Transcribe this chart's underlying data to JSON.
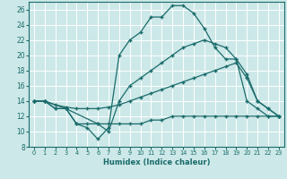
{
  "xlabel": "Humidex (Indice chaleur)",
  "xlim": [
    -0.5,
    23.5
  ],
  "ylim": [
    8,
    27
  ],
  "yticks": [
    8,
    10,
    12,
    14,
    16,
    18,
    20,
    22,
    24,
    26
  ],
  "xticks": [
    0,
    1,
    2,
    3,
    4,
    5,
    6,
    7,
    8,
    9,
    10,
    11,
    12,
    13,
    14,
    15,
    16,
    17,
    18,
    19,
    20,
    21,
    22,
    23
  ],
  "bg_color": "#cde8e8",
  "line_color": "#1a6b6b",
  "grid_color": "#ffffff",
  "lines": [
    {
      "x": [
        0,
        1,
        3,
        4,
        5,
        6,
        7,
        8,
        9,
        10,
        11,
        12,
        13,
        14,
        15,
        16,
        17,
        18,
        19,
        20,
        21,
        22,
        23
      ],
      "y": [
        14,
        14,
        13,
        11,
        10.5,
        9,
        10.5,
        20,
        22,
        23,
        25,
        25,
        26.5,
        26.5,
        25.5,
        23.5,
        21,
        19.5,
        19.5,
        14,
        13,
        12,
        12
      ]
    },
    {
      "x": [
        0,
        1,
        2,
        3,
        6,
        7,
        8,
        9,
        10,
        11,
        12,
        13,
        14,
        15,
        16,
        17,
        18,
        19,
        20,
        21,
        22,
        23
      ],
      "y": [
        14,
        14,
        13,
        13,
        11,
        10,
        14,
        16,
        17,
        18,
        19,
        20,
        21,
        21.5,
        22,
        21.5,
        21,
        19.5,
        17.5,
        14,
        13,
        12
      ]
    },
    {
      "x": [
        0,
        1,
        2,
        3,
        4,
        5,
        6,
        7,
        8,
        9,
        10,
        11,
        12,
        13,
        14,
        15,
        16,
        17,
        18,
        19,
        20,
        21,
        22,
        23
      ],
      "y": [
        14,
        14,
        13.5,
        13.2,
        13,
        13,
        13,
        13.2,
        13.5,
        14,
        14.5,
        15,
        15.5,
        16,
        16.5,
        17,
        17.5,
        18,
        18.5,
        19,
        17,
        14,
        13,
        12
      ]
    },
    {
      "x": [
        0,
        1,
        2,
        3,
        4,
        5,
        6,
        7,
        8,
        9,
        10,
        11,
        12,
        13,
        14,
        15,
        16,
        17,
        18,
        19,
        20,
        21,
        22,
        23
      ],
      "y": [
        14,
        14,
        13,
        13,
        11,
        11,
        11,
        11,
        11,
        11,
        11,
        11.5,
        11.5,
        12,
        12,
        12,
        12,
        12,
        12,
        12,
        12,
        12,
        12,
        12
      ]
    }
  ]
}
